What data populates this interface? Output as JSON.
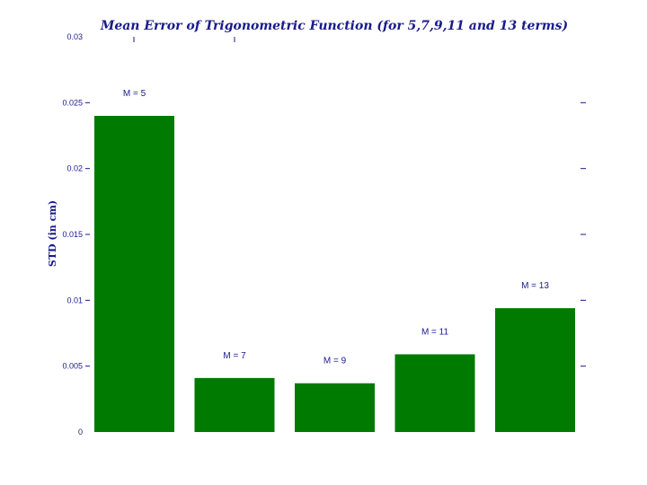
{
  "chart_data": {
    "type": "bar",
    "title": "Mean Error of Trigonometric Function (for 5,7,9,11 and 13 terms)",
    "ylabel": "STD (in cm)",
    "xlabel": "",
    "categories": [
      "M = 5",
      "M = 7",
      "M = 9",
      "M = 11",
      "M = 13"
    ],
    "values": [
      0.024,
      0.0041,
      0.0037,
      0.0059,
      0.0094
    ],
    "ylim": [
      0,
      0.03
    ],
    "yticks": [
      0,
      0.005,
      0.01,
      0.015,
      0.02,
      0.025,
      0.03
    ],
    "ytick_labels": [
      "0",
      "0.005",
      "0.01",
      "0.015",
      "0.02",
      "0.025",
      "0.03"
    ],
    "grid": false,
    "colors": {
      "bar": "#007a00",
      "text": "#1a1a8c"
    }
  }
}
